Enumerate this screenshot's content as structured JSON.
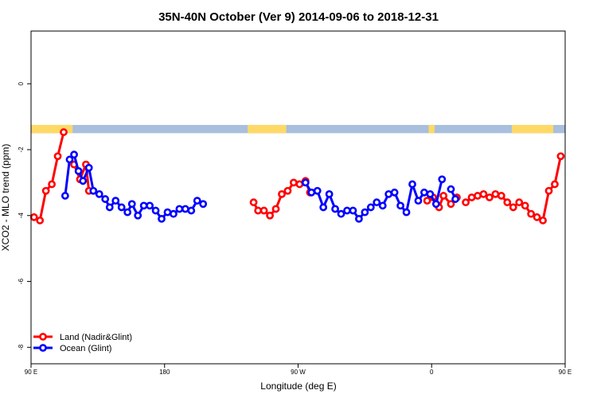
{
  "chart_data": {
    "type": "line",
    "title": "35N-40N October (Ver 9)   2014-09-06 to 2018-12-31",
    "xlabel": "Longitude (deg E)",
    "ylabel": "XCO2 - MLO trend (ppm)",
    "xlim": [
      90,
      450
    ],
    "ylim": [
      -8.5,
      1.6
    ],
    "x_ticks": [
      {
        "value": 90,
        "label": "90 E"
      },
      {
        "value": 180,
        "label": "180"
      },
      {
        "value": 270,
        "label": "90 W"
      },
      {
        "value": 360,
        "label": "0"
      },
      {
        "value": 450,
        "label": "90 E"
      },
      {
        "value": 540,
        "label": "180"
      }
    ],
    "y_ticks": [
      0,
      -2,
      -4,
      -6,
      -8
    ],
    "legend": {
      "placement": "bottom-left",
      "entries": [
        {
          "label": "Land (Nadir&Glint)",
          "color": "#ff0000"
        },
        {
          "label": "Ocean (Glint)",
          "color": "#0000ff"
        }
      ]
    },
    "surface_strip": {
      "y_range": [
        -1.5,
        -1.25
      ],
      "land_color": "#ffd966",
      "ocean_color": "#a8bfdd",
      "land_lon_ranges": [
        [
          90,
          118
        ],
        [
          236,
          262
        ],
        [
          358,
          362
        ],
        [
          414,
          442
        ]
      ]
    },
    "series": [
      {
        "name": "Land (Nadir&Glint)",
        "color": "#ff0000",
        "segments": [
          [
            [
              92,
              -4.05
            ],
            [
              96,
              -4.15
            ],
            [
              100,
              -3.25
            ],
            [
              104,
              -3.05
            ],
            [
              108,
              -2.2
            ],
            [
              112,
              -1.47
            ]
          ],
          [
            [
              119,
              -2.45
            ],
            [
              123,
              -2.9
            ],
            [
              127,
              -2.45
            ],
            [
              129,
              -3.25
            ]
          ],
          [
            [
              240,
              -3.6
            ],
            [
              243,
              -3.85
            ],
            [
              247,
              -3.85
            ],
            [
              251,
              -4
            ],
            [
              255,
              -3.8
            ],
            [
              259,
              -3.35
            ],
            [
              263,
              -3.25
            ],
            [
              267,
              -3
            ],
            [
              271,
              -3.05
            ],
            [
              275,
              -2.95
            ],
            [
              278,
              -3.3
            ]
          ],
          [
            [
              357,
              -3.55
            ],
            [
              361,
              -3.45
            ],
            [
              365,
              -3.75
            ],
            [
              368,
              -3.4
            ],
            [
              373,
              -3.65
            ],
            [
              377,
              -3.45
            ]
          ],
          [
            [
              383,
              -3.6
            ],
            [
              387,
              -3.45
            ],
            [
              391,
              -3.4
            ],
            [
              395,
              -3.35
            ],
            [
              399,
              -3.45
            ],
            [
              403,
              -3.35
            ],
            [
              407,
              -3.4
            ],
            [
              411,
              -3.6
            ],
            [
              415,
              -3.75
            ],
            [
              419,
              -3.6
            ],
            [
              423,
              -3.7
            ],
            [
              427,
              -3.95
            ],
            [
              431,
              -4.05
            ],
            [
              435,
              -4.15
            ],
            [
              439,
              -3.25
            ],
            [
              443,
              -3.05
            ],
            [
              447,
              -2.2
            ],
            [
              451,
              -1.47
            ]
          ],
          [
            [
              458,
              -2.45
            ],
            [
              462,
              -2.9
            ],
            [
              466,
              -2.45
            ],
            [
              468,
              -3.25
            ]
          ]
        ]
      },
      {
        "name": "Ocean (Glint)",
        "color": "#0000ff",
        "segments": [
          [
            [
              113,
              -3.4
            ],
            [
              116,
              -2.3
            ],
            [
              119,
              -2.15
            ],
            [
              122,
              -2.65
            ],
            [
              125,
              -2.95
            ],
            [
              129,
              -2.55
            ],
            [
              132,
              -3.25
            ],
            [
              136,
              -3.35
            ],
            [
              140,
              -3.5
            ],
            [
              143,
              -3.75
            ],
            [
              147,
              -3.55
            ],
            [
              151,
              -3.75
            ],
            [
              155,
              -3.9
            ],
            [
              158,
              -3.65
            ],
            [
              162,
              -4
            ],
            [
              166,
              -3.7
            ],
            [
              170,
              -3.7
            ],
            [
              174,
              -3.85
            ],
            [
              178,
              -4.1
            ],
            [
              182,
              -3.9
            ],
            [
              186,
              -3.95
            ],
            [
              190,
              -3.8
            ],
            [
              194,
              -3.8
            ],
            [
              198,
              -3.85
            ],
            [
              202,
              -3.55
            ],
            [
              206,
              -3.65
            ]
          ],
          [
            [
              275,
              -3
            ],
            [
              279,
              -3.3
            ],
            [
              283,
              -3.25
            ],
            [
              287,
              -3.75
            ],
            [
              291,
              -3.35
            ],
            [
              295,
              -3.8
            ],
            [
              299,
              -3.95
            ],
            [
              303,
              -3.85
            ],
            [
              307,
              -3.85
            ],
            [
              311,
              -4.1
            ],
            [
              315,
              -3.9
            ],
            [
              319,
              -3.75
            ],
            [
              323,
              -3.6
            ],
            [
              327,
              -3.7
            ],
            [
              331,
              -3.35
            ],
            [
              335,
              -3.3
            ],
            [
              339,
              -3.7
            ],
            [
              343,
              -3.9
            ],
            [
              347,
              -3.05
            ],
            [
              351,
              -3.55
            ],
            [
              355,
              -3.3
            ],
            [
              359,
              -3.35
            ],
            [
              363,
              -3.65
            ],
            [
              367,
              -2.9
            ]
          ],
          [
            [
              373,
              -3.2
            ],
            [
              376,
              -3.5
            ]
          ],
          [
            [
              452,
              -3.4
            ],
            [
              455,
              -2.3
            ],
            [
              458,
              -2.15
            ],
            [
              461,
              -2.65
            ],
            [
              464,
              -3.05
            ],
            [
              468,
              -2.55
            ],
            [
              471,
              -3.25
            ],
            [
              475,
              -3.35
            ],
            [
              479,
              -3.5
            ],
            [
              482,
              -3.75
            ],
            [
              486,
              -3.55
            ],
            [
              490,
              -3.75
            ],
            [
              494,
              -3.9
            ]
          ]
        ]
      }
    ]
  }
}
